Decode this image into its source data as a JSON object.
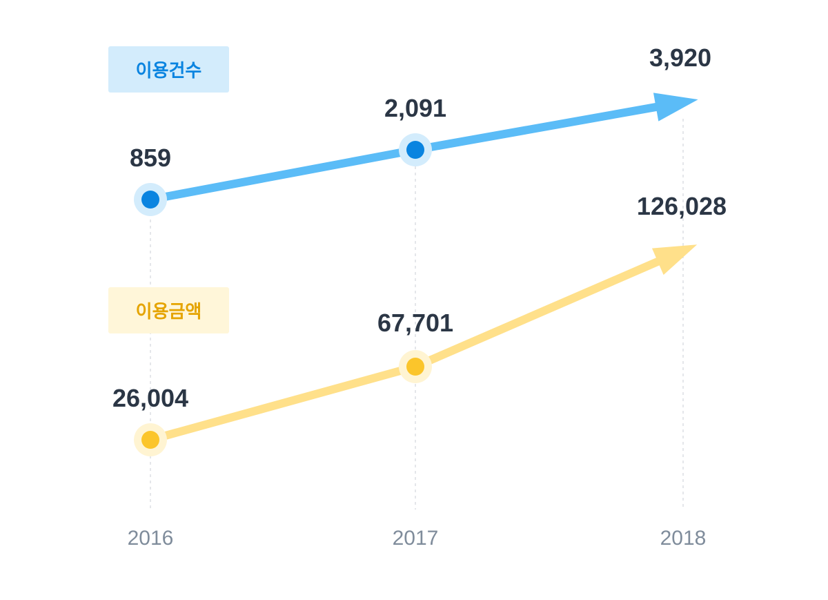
{
  "chart_data": {
    "type": "line",
    "categories": [
      "2016",
      "2017",
      "2018"
    ],
    "series": [
      {
        "name": "이용건수",
        "values": [
          859,
          2091,
          3920
        ],
        "labels": [
          "859",
          "2,091",
          "3,920"
        ],
        "color": "#5bbcf7",
        "point_color": "#0a84e0",
        "halo_color": "#d3ecfc",
        "badge_bg": "#d3ecfc",
        "badge_text": "#0a84e0"
      },
      {
        "name": "이용금액",
        "values": [
          26004,
          67701,
          126028
        ],
        "labels": [
          "26,004",
          "67,701",
          "126,028"
        ],
        "color": "#ffe08a",
        "point_color": "#fbc52b",
        "halo_color": "#fff4d2",
        "badge_bg": "#fff6d9",
        "badge_text": "#e5a400"
      }
    ],
    "grid": "vertical-dashed",
    "tick_color": "#7f8c9b"
  }
}
